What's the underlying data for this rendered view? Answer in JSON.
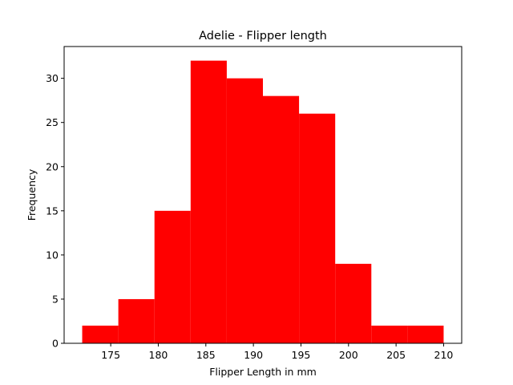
{
  "chart_data": {
    "type": "bar",
    "title": "Adelie - Flipper length",
    "xlabel": "Flipper Length in mm",
    "ylabel": "Frequency",
    "bin_edges": [
      172,
      175.8,
      179.6,
      183.4,
      187.2,
      191.0,
      194.8,
      198.6,
      202.4,
      206.2,
      210
    ],
    "values": [
      2,
      5,
      15,
      32,
      30,
      28,
      26,
      9,
      2,
      2
    ],
    "bar_color": "#ff0000",
    "xlim": [
      170.1,
      211.9
    ],
    "ylim": [
      0,
      33.6
    ],
    "xticks": [
      175,
      180,
      185,
      190,
      195,
      200,
      205,
      210
    ],
    "yticks": [
      0,
      5,
      10,
      15,
      20,
      25,
      30
    ],
    "grid": false,
    "legend": "none"
  }
}
